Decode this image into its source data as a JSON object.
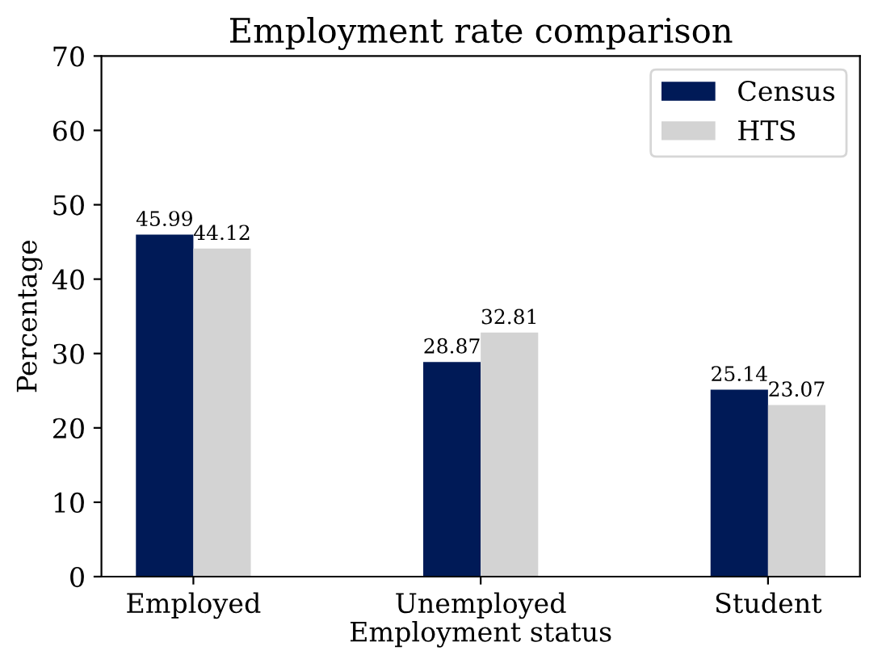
{
  "chart_data": {
    "type": "bar",
    "title": "Employment rate comparison",
    "xlabel": "Employment status",
    "ylabel": "Percentage",
    "categories": [
      "Employed",
      "Unemployed",
      "Student"
    ],
    "series": [
      {
        "name": "Census",
        "color": "#001a57",
        "values": [
          45.99,
          28.87,
          25.14
        ]
      },
      {
        "name": "HTS",
        "color": "#d3d3d3",
        "values": [
          44.12,
          32.81,
          23.07
        ]
      }
    ],
    "ylim": [
      0,
      70
    ],
    "yticks": [
      0,
      10,
      20,
      30,
      40,
      50,
      60,
      70
    ],
    "data_labels": true,
    "legend": "top right",
    "grid": false
  }
}
